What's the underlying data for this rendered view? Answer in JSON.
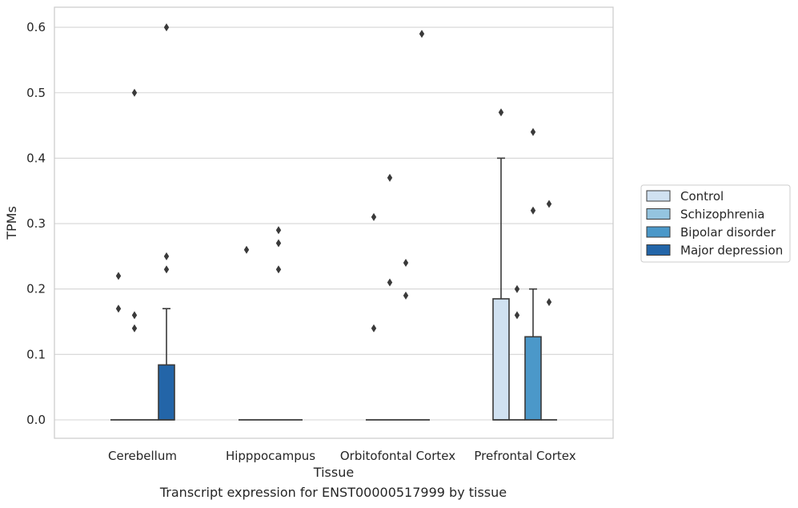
{
  "chart_data": {
    "type": "box",
    "title": "",
    "xlabel": "Tissue",
    "ylabel": "TPMs",
    "caption": "Transcript expression for ENST00000517999 by tissue",
    "ylim": [
      -0.03,
      0.63
    ],
    "yticks": [
      "0.0",
      "0.1",
      "0.2",
      "0.3",
      "0.4",
      "0.5",
      "0.6"
    ],
    "grid": "horizontal",
    "legend_position": "center-right",
    "categories": [
      "Cerebellum",
      "Hipppocampus",
      "Orbitofontal Cortex",
      "Prefrontal Cortex"
    ],
    "series": [
      {
        "name": "Control",
        "color": "#d0e1f1",
        "boxes": [
          {
            "q1": 0,
            "median": 0,
            "q3": 0,
            "whisker_low": 0,
            "whisker_high": 0,
            "outliers": [
              0.22,
              0.17
            ]
          },
          {
            "q1": 0,
            "median": 0,
            "q3": 0,
            "whisker_low": 0,
            "whisker_high": 0,
            "outliers": [
              0.26
            ]
          },
          {
            "q1": 0,
            "median": 0,
            "q3": 0,
            "whisker_low": 0,
            "whisker_high": 0,
            "outliers": [
              0.31,
              0.14
            ]
          },
          {
            "q1": 0,
            "median": 0,
            "q3": 0.185,
            "whisker_low": 0,
            "whisker_high": 0.4,
            "outliers": [
              0.47
            ]
          }
        ]
      },
      {
        "name": "Schizophrenia",
        "color": "#94c4df",
        "boxes": [
          {
            "q1": 0,
            "median": 0,
            "q3": 0,
            "whisker_low": 0,
            "whisker_high": 0,
            "outliers": [
              0.5,
              0.16,
              0.14
            ]
          },
          {
            "q1": 0,
            "median": 0,
            "q3": 0,
            "whisker_low": 0,
            "whisker_high": 0,
            "outliers": []
          },
          {
            "q1": 0,
            "median": 0,
            "q3": 0,
            "whisker_low": 0,
            "whisker_high": 0,
            "outliers": [
              0.37,
              0.21
            ]
          },
          {
            "q1": 0,
            "median": 0,
            "q3": 0,
            "whisker_low": 0,
            "whisker_high": 0,
            "outliers": [
              0.2,
              0.16
            ]
          }
        ]
      },
      {
        "name": "Bipolar disorder",
        "color": "#4b98c9",
        "boxes": [
          {
            "q1": 0,
            "median": 0,
            "q3": 0,
            "whisker_low": 0,
            "whisker_high": 0,
            "outliers": []
          },
          {
            "q1": 0,
            "median": 0,
            "q3": 0,
            "whisker_low": 0,
            "whisker_high": 0,
            "outliers": [
              0.29,
              0.27,
              0.23
            ]
          },
          {
            "q1": 0,
            "median": 0,
            "q3": 0,
            "whisker_low": 0,
            "whisker_high": 0,
            "outliers": [
              0.24,
              0.19
            ]
          },
          {
            "q1": 0,
            "median": 0,
            "q3": 0.127,
            "whisker_low": 0,
            "whisker_high": 0.2,
            "outliers": [
              0.44,
              0.32
            ]
          }
        ]
      },
      {
        "name": "Major depression",
        "color": "#2365a8",
        "boxes": [
          {
            "q1": 0,
            "median": 0,
            "q3": 0.084,
            "whisker_low": 0,
            "whisker_high": 0.17,
            "outliers": [
              0.6,
              0.25,
              0.23
            ]
          },
          {
            "q1": 0,
            "median": 0,
            "q3": 0,
            "whisker_low": 0,
            "whisker_high": 0,
            "outliers": []
          },
          {
            "q1": 0,
            "median": 0,
            "q3": 0,
            "whisker_low": 0,
            "whisker_high": 0,
            "outliers": [
              0.59
            ]
          },
          {
            "q1": 0,
            "median": 0,
            "q3": 0,
            "whisker_low": 0,
            "whisker_high": 0,
            "outliers": [
              0.33,
              0.18
            ]
          }
        ]
      }
    ]
  }
}
